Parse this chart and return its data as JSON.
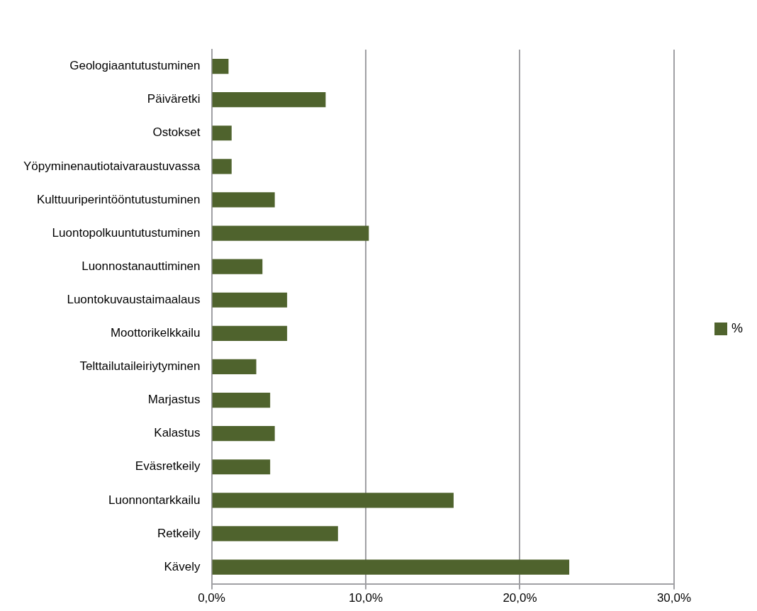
{
  "chart_data": {
    "type": "bar",
    "orientation": "horizontal",
    "categories": [
      "Geologiaantutustuminen",
      "Päiväretki",
      "Ostokset",
      "Yöpyminenautiotaivaraustuvassa",
      "Kulttuuriperintööntutustuminen",
      "Luontopolkuuntutustuminen",
      "Luonnostanauttiminen",
      "Luontokuvaustaimaalaus",
      "Moottorikelkkailu",
      "Telttailutaileiriytyminen",
      "Marjastus",
      "Kalastus",
      "Eväsretkeily",
      "Luonnontarkkailu",
      "Retkeily",
      "Kävely"
    ],
    "series": [
      {
        "name": "%",
        "color": "#4f632d",
        "values": [
          1.1,
          7.4,
          1.3,
          1.3,
          4.1,
          10.2,
          3.3,
          4.9,
          4.9,
          2.9,
          3.8,
          4.1,
          3.8,
          15.7,
          8.2,
          23.2
        ]
      }
    ],
    "xlim": [
      0,
      30
    ],
    "xticks": [
      {
        "value": 0,
        "label": "0,0%"
      },
      {
        "value": 10,
        "label": "10,0%"
      },
      {
        "value": 20,
        "label": "20,0%"
      },
      {
        "value": 30,
        "label": "30,0%"
      }
    ],
    "grid": "x",
    "legend": "right"
  }
}
